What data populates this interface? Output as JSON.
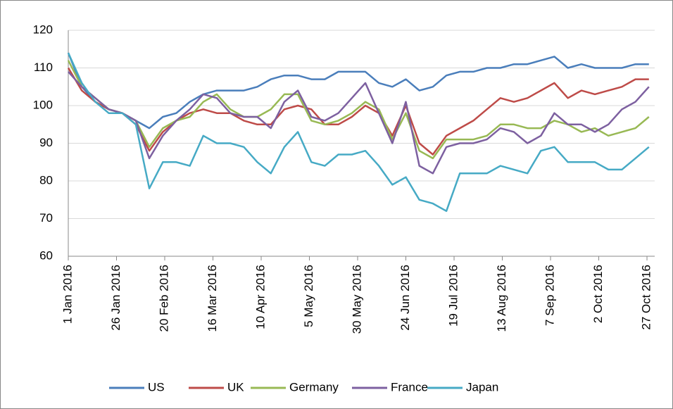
{
  "chart_data": {
    "type": "line",
    "x": [
      "2016-01-01",
      "2016-01-08",
      "2016-01-15",
      "2016-01-22",
      "2016-01-29",
      "2016-02-05",
      "2016-02-12",
      "2016-02-19",
      "2016-02-26",
      "2016-03-04",
      "2016-03-11",
      "2016-03-18",
      "2016-03-25",
      "2016-04-01",
      "2016-04-08",
      "2016-04-15",
      "2016-04-22",
      "2016-04-29",
      "2016-05-06",
      "2016-05-13",
      "2016-05-20",
      "2016-05-27",
      "2016-06-03",
      "2016-06-10",
      "2016-06-17",
      "2016-06-24",
      "2016-07-01",
      "2016-07-08",
      "2016-07-15",
      "2016-07-22",
      "2016-07-29",
      "2016-08-05",
      "2016-08-12",
      "2016-08-19",
      "2016-08-26",
      "2016-09-02",
      "2016-09-09",
      "2016-09-16",
      "2016-09-23",
      "2016-09-30",
      "2016-10-07",
      "2016-10-14",
      "2016-10-21",
      "2016-10-28"
    ],
    "series": [
      {
        "name": "US",
        "color": "#4a7ebb",
        "values": [
          114,
          105,
          101,
          99,
          98,
          96,
          94,
          97,
          98,
          101,
          103,
          104,
          104,
          104,
          105,
          107,
          108,
          108,
          107,
          107,
          109,
          109,
          109,
          106,
          105,
          107,
          104,
          105,
          108,
          109,
          109,
          110,
          110,
          111,
          111,
          112,
          113,
          110,
          111,
          110,
          110,
          110,
          111,
          111
        ]
      },
      {
        "name": "UK",
        "color": "#be4b48",
        "values": [
          110,
          104,
          101,
          99,
          98,
          95,
          88,
          93,
          96,
          98,
          99,
          98,
          98,
          96,
          95,
          95,
          99,
          100,
          99,
          95,
          95,
          97,
          100,
          98,
          92,
          100,
          90,
          87,
          92,
          94,
          96,
          99,
          102,
          101,
          102,
          104,
          106,
          102,
          104,
          103,
          104,
          105,
          107,
          107
        ]
      },
      {
        "name": "Germany",
        "color": "#98b954",
        "values": [
          112,
          105,
          102,
          99,
          98,
          96,
          89,
          94,
          96,
          97,
          101,
          103,
          99,
          97,
          97,
          99,
          103,
          103,
          96,
          95,
          96,
          98,
          101,
          99,
          91,
          98,
          88,
          86,
          91,
          91,
          91,
          92,
          95,
          95,
          94,
          94,
          96,
          95,
          93,
          94,
          92,
          93,
          94,
          97
        ]
      },
      {
        "name": "France",
        "color": "#7d60a0",
        "values": [
          109,
          105,
          102,
          99,
          98,
          96,
          86,
          92,
          96,
          99,
          103,
          102,
          98,
          97,
          97,
          94,
          101,
          104,
          97,
          96,
          98,
          102,
          106,
          98,
          90,
          101,
          84,
          82,
          89,
          90,
          90,
          91,
          94,
          93,
          90,
          92,
          98,
          95,
          95,
          93,
          95,
          99,
          101,
          105
        ]
      },
      {
        "name": "Japan",
        "color": "#46aac5",
        "values": [
          114,
          106,
          101,
          98,
          98,
          95,
          78,
          85,
          85,
          84,
          92,
          90,
          90,
          89,
          85,
          82,
          89,
          93,
          85,
          84,
          87,
          87,
          88,
          84,
          79,
          81,
          75,
          74,
          72,
          82,
          82,
          82,
          84,
          83,
          82,
          88,
          89,
          85,
          85,
          85,
          83,
          83,
          86,
          89
        ]
      }
    ],
    "xlim": [
      "2016-01-01",
      "2016-10-31"
    ],
    "xticks": [
      {
        "value": "2016-01-01",
        "label": "1 Jan 2016"
      },
      {
        "value": "2016-01-26",
        "label": "26 Jan 2016"
      },
      {
        "value": "2016-02-20",
        "label": "20 Feb 2016"
      },
      {
        "value": "2016-03-16",
        "label": "16 Mar 2016"
      },
      {
        "value": "2016-04-10",
        "label": "10 Apr 2016"
      },
      {
        "value": "2016-05-05",
        "label": "5 May 2016"
      },
      {
        "value": "2016-05-30",
        "label": "30 May 2016"
      },
      {
        "value": "2016-06-24",
        "label": "24 Jun 2016"
      },
      {
        "value": "2016-07-19",
        "label": "19 Jul 2016"
      },
      {
        "value": "2016-08-13",
        "label": "13 Aug 2016"
      },
      {
        "value": "2016-09-07",
        "label": "7 Sep 2016"
      },
      {
        "value": "2016-10-02",
        "label": "2 Oct 2016"
      },
      {
        "value": "2016-10-27",
        "label": "27 Oct 2016"
      }
    ],
    "ylim": [
      60,
      120
    ],
    "yticks": [
      60,
      70,
      80,
      90,
      100,
      110,
      120
    ],
    "grid": true,
    "legend": "bottom"
  }
}
